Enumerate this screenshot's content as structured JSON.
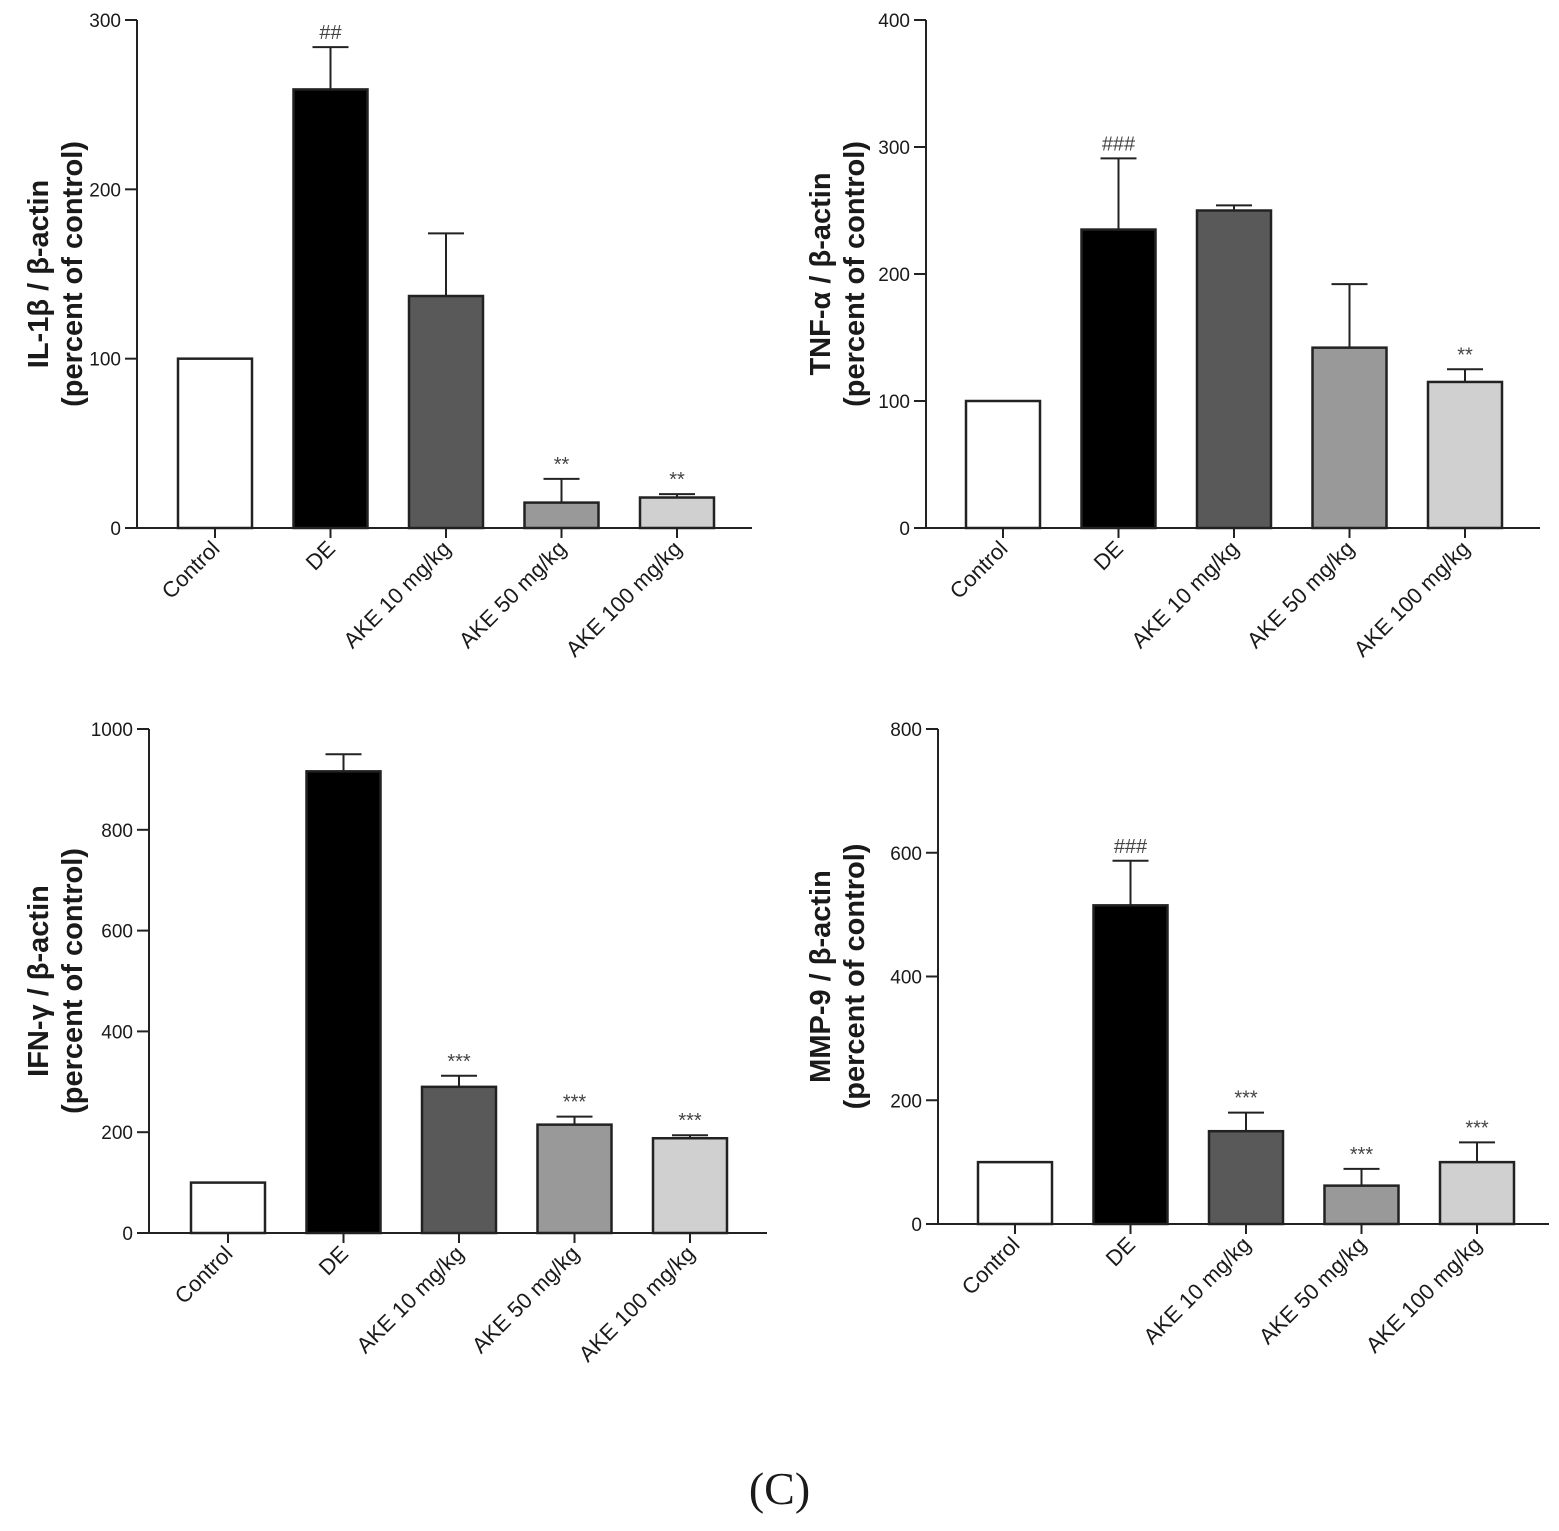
{
  "figure": {
    "panel_label": "(C)"
  },
  "chart_data": [
    {
      "type": "bar",
      "title": "",
      "xlabel": "",
      "ylabel": "IL-1β / β-actin\n(percent of control)",
      "ylim": [
        0,
        300
      ],
      "yticks": [
        0,
        100,
        200,
        300
      ],
      "categories": [
        "Control",
        "DE",
        "AKE 10 mg/kg",
        "AKE 50 mg/kg",
        "AKE 100 mg/kg"
      ],
      "values": [
        100,
        259,
        137,
        15,
        18
      ],
      "errors": [
        0,
        25,
        37,
        14,
        2
      ],
      "annotations": [
        "",
        "##",
        "",
        "**",
        "**"
      ],
      "colors": [
        "#ffffff",
        "#000000",
        "#595959",
        "#999999",
        "#d0d0d0"
      ]
    },
    {
      "type": "bar",
      "title": "",
      "xlabel": "",
      "ylabel": "TNF-α / β-actin\n(percent of control)",
      "ylim": [
        0,
        400
      ],
      "yticks": [
        0,
        100,
        200,
        300,
        400
      ],
      "categories": [
        "Control",
        "DE",
        "AKE 10 mg/kg",
        "AKE 50 mg/kg",
        "AKE 100 mg/kg"
      ],
      "values": [
        100,
        235,
        250,
        142,
        115
      ],
      "errors": [
        0,
        56,
        4,
        50,
        10
      ],
      "annotations": [
        "",
        "###",
        "",
        "",
        "**"
      ],
      "colors": [
        "#ffffff",
        "#000000",
        "#595959",
        "#999999",
        "#d0d0d0"
      ]
    },
    {
      "type": "bar",
      "title": "",
      "xlabel": "",
      "ylabel": "IFN-γ / β-actin\n(percent of control)",
      "ylim": [
        0,
        1000
      ],
      "yticks": [
        0,
        200,
        400,
        600,
        800,
        1000
      ],
      "categories": [
        "Control",
        "DE",
        "AKE 10 mg/kg",
        "AKE 50 mg/kg",
        "AKE 100 mg/kg"
      ],
      "values": [
        100,
        916,
        290,
        215,
        188
      ],
      "errors": [
        0,
        34,
        22,
        16,
        6
      ],
      "annotations": [
        "",
        "",
        "***",
        "***",
        "***"
      ],
      "colors": [
        "#ffffff",
        "#000000",
        "#595959",
        "#999999",
        "#d0d0d0"
      ]
    },
    {
      "type": "bar",
      "title": "",
      "xlabel": "",
      "ylabel": "MMP-9 / β-actin\n(percent of control)",
      "ylim": [
        0,
        800
      ],
      "yticks": [
        0,
        200,
        400,
        600,
        800
      ],
      "categories": [
        "Control",
        "DE",
        "AKE 10 mg/kg",
        "AKE 50 mg/kg",
        "AKE 100 mg/kg"
      ],
      "values": [
        100,
        515,
        150,
        62,
        100
      ],
      "errors": [
        0,
        72,
        30,
        27,
        32
      ],
      "annotations": [
        "",
        "###",
        "***",
        "***",
        "***"
      ],
      "colors": [
        "#ffffff",
        "#000000",
        "#595959",
        "#999999",
        "#d0d0d0"
      ]
    }
  ]
}
